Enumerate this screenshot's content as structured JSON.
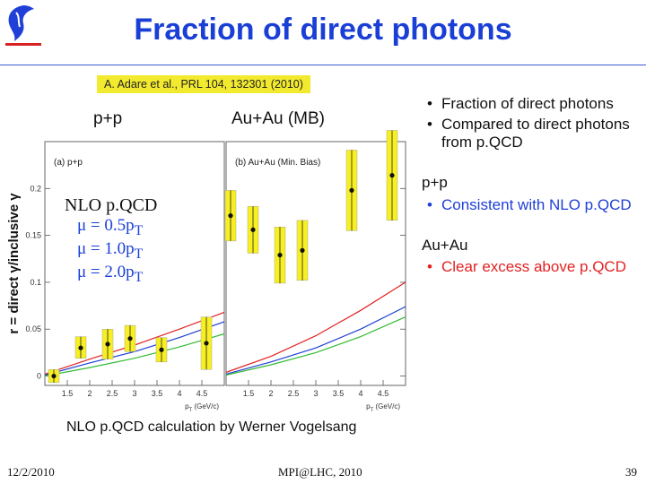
{
  "slide": {
    "title": "Fraction of direct photons",
    "citation": "A. Adare et al., PRL 104, 132301 (2010)",
    "credit": "NLO p.QCD calculation by Werner Vogelsang",
    "footer": {
      "date": "12/2/2010",
      "center": "MPI@LHC, 2010",
      "page": "39"
    },
    "logo_icon": "university-logo-icon"
  },
  "bullets": {
    "intro": [
      "Fraction of direct photons",
      "Compared to direct photons from p.QCD"
    ],
    "pp_heading": "p+p",
    "pp": [
      "Consistent with NLO p.QCD"
    ],
    "auau_heading": "Au+Au",
    "auau": [
      "Clear excess above p.QCD"
    ]
  },
  "colors": {
    "title": "#1a3fd6",
    "highlight": "#f2ea2e",
    "errorbar": "#f7ef22",
    "curve_high": "#e32222",
    "curve_mid": "#1f3fd6",
    "curve_low": "#33bb33"
  },
  "chart_data": {
    "type": "scatter",
    "ylabel": "r = direct γ/inclusive γ",
    "ylim": [
      -0.01,
      0.25
    ],
    "yticks": [
      0,
      0.05,
      0.1,
      0.15,
      0.2
    ],
    "ytick_labels": [
      "0",
      "0.05",
      "0.1",
      "0.15",
      "0.2"
    ],
    "legend": {
      "title": "NLO p.QCD",
      "lines": [
        {
          "mu": "μ = 0.5p",
          "sub": "T"
        },
        {
          "mu": "μ = 1.0p",
          "sub": "T"
        },
        {
          "mu": "μ = 2.0p",
          "sub": "T"
        }
      ]
    },
    "panels": [
      {
        "tag": "(a) p+p",
        "label": "p+p",
        "xlim": [
          1.0,
          5.0
        ],
        "xticks": [
          1.5,
          2,
          2.5,
          3,
          3.5,
          4,
          4.5
        ],
        "xtick_labels": [
          "1.5",
          "2",
          "2.5",
          "3",
          "3.5",
          "4",
          "4.5"
        ],
        "xlabel": "p",
        "xlabel_sub": "T",
        "xunit": "(GeV/c)",
        "points": [
          {
            "x": 1.2,
            "y": 0.0,
            "lo": 0.007,
            "hi": 0.007
          },
          {
            "x": 1.8,
            "y": 0.03,
            "lo": 0.011,
            "hi": 0.012
          },
          {
            "x": 2.4,
            "y": 0.034,
            "lo": 0.016,
            "hi": 0.016
          },
          {
            "x": 2.9,
            "y": 0.04,
            "lo": 0.014,
            "hi": 0.014
          },
          {
            "x": 3.6,
            "y": 0.028,
            "lo": 0.013,
            "hi": 0.013
          },
          {
            "x": 4.6,
            "y": 0.035,
            "lo": 0.028,
            "hi": 0.028
          }
        ],
        "curves": [
          {
            "color": "#e32222",
            "points": [
              [
                1.0,
                0.002
              ],
              [
                2.0,
                0.018
              ],
              [
                3.0,
                0.033
              ],
              [
                4.0,
                0.05
              ],
              [
                5.0,
                0.068
              ]
            ]
          },
          {
            "color": "#1f3fd6",
            "points": [
              [
                1.0,
                0.001
              ],
              [
                2.0,
                0.014
              ],
              [
                3.0,
                0.026
              ],
              [
                4.0,
                0.041
              ],
              [
                5.0,
                0.058
              ]
            ]
          },
          {
            "color": "#33bb33",
            "points": [
              [
                1.0,
                0.0
              ],
              [
                2.0,
                0.009
              ],
              [
                3.0,
                0.019
              ],
              [
                4.0,
                0.031
              ],
              [
                5.0,
                0.045
              ]
            ]
          }
        ]
      },
      {
        "tag": "(b) Au+Au (Min. Bias)",
        "label": "Au+Au (MB)",
        "xlim": [
          1.0,
          5.0
        ],
        "xticks": [
          1.5,
          2,
          2.5,
          3,
          3.5,
          4,
          4.5
        ],
        "xtick_labels": [
          "1.5",
          "2",
          "2.5",
          "3",
          "3.5",
          "4",
          "4.5"
        ],
        "xlabel": "p",
        "xlabel_sub": "T",
        "xunit": "(GeV/c)",
        "points": [
          {
            "x": 1.1,
            "y": 0.171,
            "lo": 0.027,
            "hi": 0.027
          },
          {
            "x": 1.6,
            "y": 0.156,
            "lo": 0.025,
            "hi": 0.025
          },
          {
            "x": 2.2,
            "y": 0.129,
            "lo": 0.03,
            "hi": 0.03
          },
          {
            "x": 2.7,
            "y": 0.134,
            "lo": 0.032,
            "hi": 0.032
          },
          {
            "x": 3.8,
            "y": 0.198,
            "lo": 0.043,
            "hi": 0.043
          },
          {
            "x": 4.7,
            "y": 0.214,
            "lo": 0.048,
            "hi": 0.048
          }
        ],
        "curves": [
          {
            "color": "#e32222",
            "points": [
              [
                1.0,
                0.004
              ],
              [
                2.0,
                0.021
              ],
              [
                3.0,
                0.043
              ],
              [
                4.0,
                0.07
              ],
              [
                5.0,
                0.1
              ]
            ]
          },
          {
            "color": "#1f3fd6",
            "points": [
              [
                1.0,
                0.002
              ],
              [
                2.0,
                0.015
              ],
              [
                3.0,
                0.03
              ],
              [
                4.0,
                0.05
              ],
              [
                5.0,
                0.074
              ]
            ]
          },
          {
            "color": "#33bb33",
            "points": [
              [
                1.0,
                0.001
              ],
              [
                2.0,
                0.012
              ],
              [
                3.0,
                0.025
              ],
              [
                4.0,
                0.042
              ],
              [
                5.0,
                0.063
              ]
            ]
          }
        ]
      }
    ]
  }
}
